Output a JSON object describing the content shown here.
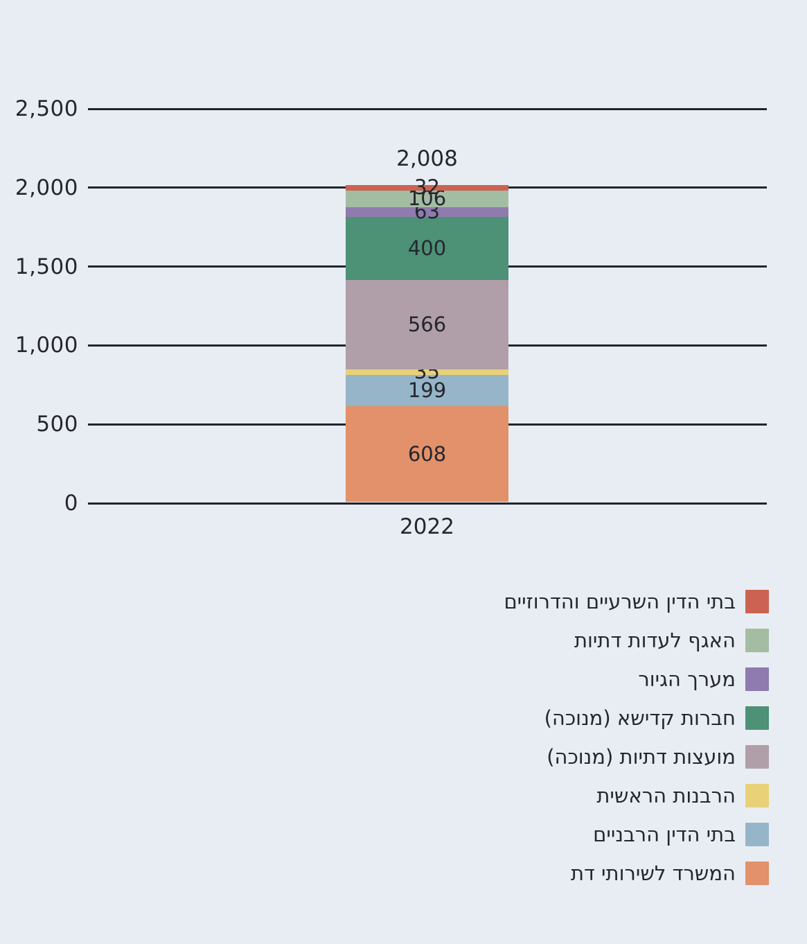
{
  "colors": {
    "background": "#e8edf4",
    "gridline": "#23232b",
    "text": "#26262e"
  },
  "chart_data": {
    "type": "bar",
    "stacked": true,
    "title": "",
    "x_categories": [
      "2022"
    ],
    "total": {
      "value": 2008,
      "label": "2,008"
    },
    "y_axis": {
      "range": [
        0,
        2500
      ],
      "gridlines": true,
      "ticks": [
        {
          "value": 0,
          "label": "0"
        },
        {
          "value": 500,
          "label": "500"
        },
        {
          "value": 1000,
          "label": "1,000"
        },
        {
          "value": 1500,
          "label": "1,500"
        },
        {
          "value": 2000,
          "label": "2,000"
        },
        {
          "value": 2500,
          "label": "2,500"
        }
      ]
    },
    "legend_position": "bottom-right",
    "legend_order": "top-segment-first",
    "series": [
      {
        "name": "המשרד לשירותי דת",
        "value": 608,
        "label": "608",
        "color": "#e2916a"
      },
      {
        "name": "בתי הדין הרבניים",
        "value": 199,
        "label": "199",
        "color": "#96b5c8"
      },
      {
        "name": "הרבנות הראשית",
        "value": 35,
        "label": "35",
        "color": "#e9d178"
      },
      {
        "name": "מועצות דתיות (מנוכה)",
        "value": 566,
        "label": "566",
        "color": "#b09fa9"
      },
      {
        "name": "חברות קדישא (מנוכה)",
        "value": 400,
        "label": "400",
        "color": "#4d9176"
      },
      {
        "name": "מערך הגיור",
        "value": 63,
        "label": "63",
        "color": "#8f7bae"
      },
      {
        "name": "האגף לעדות דתיות",
        "value": 106,
        "label": "106",
        "color": "#a3bda3"
      },
      {
        "name": "בתי הדין השרעיים והדרוזיים",
        "value": 32,
        "label": "32",
        "color": "#cc6352"
      }
    ]
  }
}
